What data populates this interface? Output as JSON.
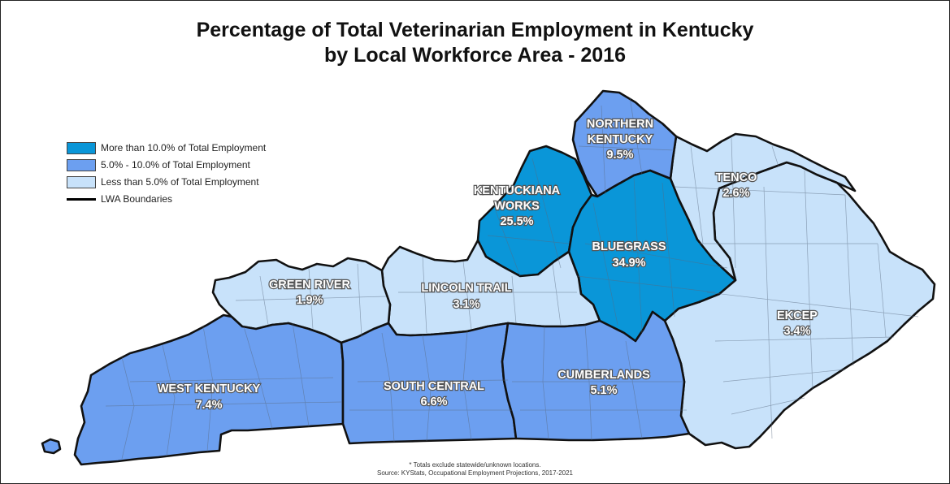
{
  "map": {
    "title_line1": "Percentage of Total Veterinarian Employment in Kentucky",
    "title_line2": "by Local Workforce Area - 2016",
    "colors": {
      "high": "#0a96d8",
      "mid": "#6c9ff0",
      "low": "#c8e2fa",
      "boundary": "#000000"
    },
    "legend": [
      {
        "label": "More than 10.0% of Total Employment",
        "color": "#0a96d8"
      },
      {
        "label": "5.0% - 10.0% of Total Employment",
        "color": "#6c9ff0"
      },
      {
        "label": "Less than 5.0% of Total Employment",
        "color": "#c8e2fa"
      },
      {
        "label": "LWA Boundaries",
        "color": "#000000"
      }
    ],
    "regions": {
      "northern_kentucky": {
        "name_line1": "NORTHERN",
        "name_line2": "KENTUCKY",
        "value": "9.5%",
        "category": "mid"
      },
      "kentuckiana": {
        "name_line1": "KENTUCKIANA",
        "name_line2": "WORKS",
        "value": "25.5%",
        "category": "high"
      },
      "tenco": {
        "name": "TENCO",
        "value": "2.6%",
        "category": "low"
      },
      "bluegrass": {
        "name": "BLUEGRASS",
        "value": "34.9%",
        "category": "high"
      },
      "green_river": {
        "name": "GREEN RIVER",
        "value": "1.9%",
        "category": "low"
      },
      "lincoln_trail": {
        "name": "LINCOLN TRAIL",
        "value": "3.1%",
        "category": "low"
      },
      "ekcep": {
        "name": "EKCEP",
        "value": "3.4%",
        "category": "low"
      },
      "west_kentucky": {
        "name": "WEST KENTUCKY",
        "value": "7.4%",
        "category": "mid"
      },
      "south_central": {
        "name": "SOUTH CENTRAL",
        "value": "6.6%",
        "category": "mid"
      },
      "cumberlands": {
        "name": "CUMBERLANDS",
        "value": "5.1%",
        "category": "mid"
      }
    },
    "footnote": "* Totals exclude statewide/unknown locations.",
    "source": "Source: KYStats, Occupational Employment Projections, 2017-2021"
  }
}
